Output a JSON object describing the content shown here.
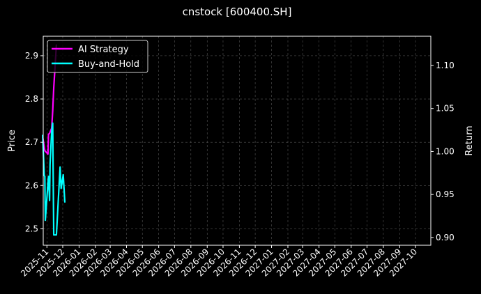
{
  "chart_data": {
    "type": "line",
    "title": "cnstock [600400.SH]",
    "ylabel": "Price",
    "ylabel_right": "Return",
    "xlim": [
      "2025-10-25",
      "2027-10-30"
    ],
    "ylim": [
      2.462,
      2.945
    ],
    "ylim_right": [
      0.891,
      1.134
    ],
    "yticks": [
      2.5,
      2.6,
      2.7,
      2.8,
      2.9
    ],
    "yticks_right": [
      0.9,
      0.95,
      1.0,
      1.05,
      1.1
    ],
    "xticks": [
      "2025-11",
      "2025-12",
      "2026-01",
      "2026-02",
      "2026-03",
      "2026-04",
      "2026-05",
      "2026-06",
      "2026-07",
      "2026-08",
      "2026-09",
      "2026-10",
      "2026-11",
      "2026-12",
      "2027-01",
      "2027-02",
      "2027-03",
      "2027-04",
      "2027-05",
      "2027-06",
      "2027-07",
      "2027-08",
      "2027-09",
      "2027-10"
    ],
    "grid": true,
    "legend": "top-left",
    "background": "#000000",
    "series": [
      {
        "name": "AI Strategy",
        "color": "#ff00ff",
        "axis": "right",
        "x": [
          "2025-10-24",
          "2025-10-28",
          "2025-11-03",
          "2025-11-04",
          "2025-11-06",
          "2025-11-10",
          "2025-11-12",
          "2025-11-14",
          "2025-11-17",
          "2025-11-19"
        ],
        "y": [
          1.017,
          1.001,
          0.997,
          1.02,
          1.021,
          1.027,
          1.047,
          1.074,
          1.104,
          1.124
        ]
      },
      {
        "name": "Buy-and-Hold",
        "color": "#00ffff",
        "axis": "right",
        "x": [
          "2025-10-24",
          "2025-10-27",
          "2025-10-28",
          "2025-10-29",
          "2025-11-03",
          "2025-11-04",
          "2025-11-06",
          "2025-11-07",
          "2025-11-10",
          "2025-11-12",
          "2025-11-14",
          "2025-11-19",
          "2025-11-21",
          "2025-11-26",
          "2025-11-28",
          "2025-12-02",
          "2025-12-05"
        ],
        "y": [
          1.019,
          0.972,
          0.971,
          0.92,
          0.963,
          0.971,
          0.943,
          0.985,
          1.023,
          1.033,
          0.903,
          0.903,
          0.925,
          0.982,
          0.957,
          0.973,
          0.941
        ]
      }
    ]
  }
}
